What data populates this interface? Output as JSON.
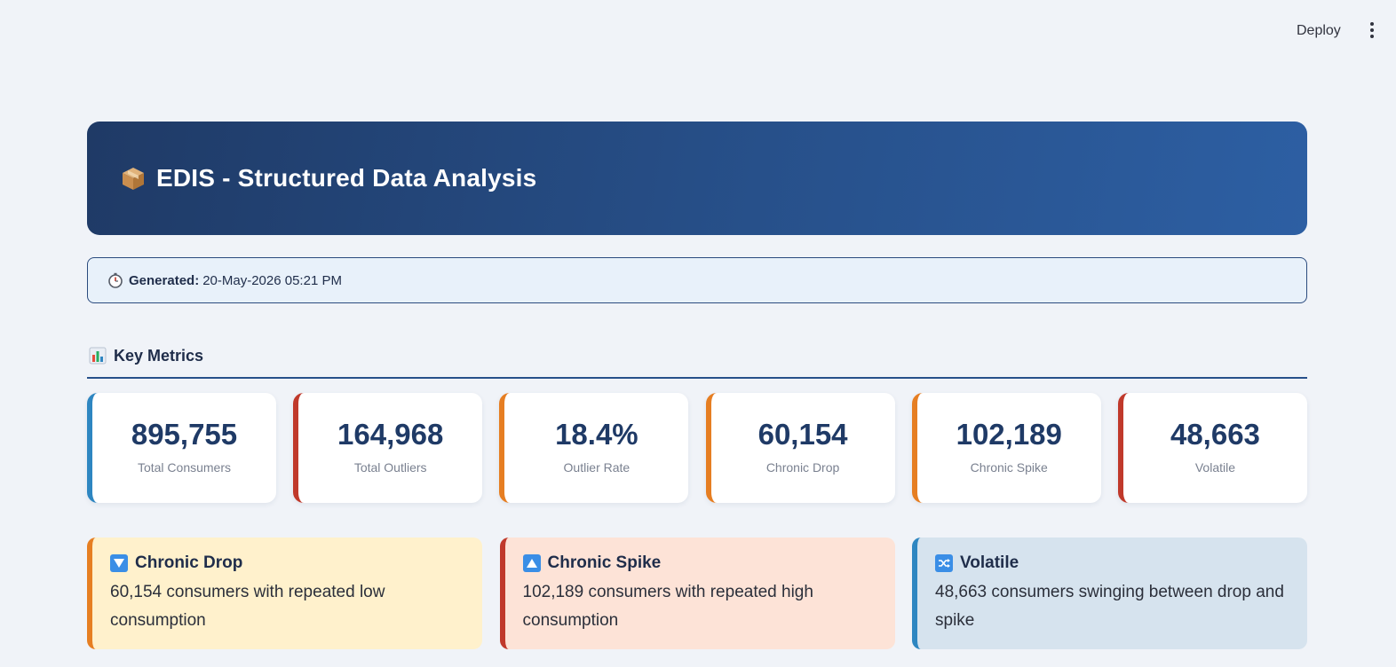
{
  "topbar": {
    "deploy_label": "Deploy",
    "menu_icon": "vertical-ellipsis-icon"
  },
  "hero": {
    "icon": "package-icon",
    "title": "EDIS - Structured Data Analysis"
  },
  "generated": {
    "icon": "stopwatch-icon",
    "label": "Generated:",
    "value": "20-May-2026 05:21 PM"
  },
  "key_metrics": {
    "icon": "bar-chart-icon",
    "title": "Key Metrics",
    "items": [
      {
        "value": "895,755",
        "label": "Total Consumers",
        "accent": "#2e86c1"
      },
      {
        "value": "164,968",
        "label": "Total Outliers",
        "accent": "#c0392b"
      },
      {
        "value": "18.4%",
        "label": "Outlier Rate",
        "accent": "#e67e22"
      },
      {
        "value": "60,154",
        "label": "Chronic Drop",
        "accent": "#e67e22"
      },
      {
        "value": "102,189",
        "label": "Chronic Spike",
        "accent": "#e67e22"
      },
      {
        "value": "48,663",
        "label": "Volatile",
        "accent": "#c0392b"
      }
    ]
  },
  "categories": [
    {
      "icon": "down-triangle-icon",
      "title": "Chronic Drop",
      "text": "60,154 consumers with repeated low consumption",
      "accent": "#e67e22",
      "bg": "#fff1cc"
    },
    {
      "icon": "up-triangle-icon",
      "title": "Chronic Spike",
      "text": "102,189 consumers with repeated high consumption",
      "accent": "#c0392b",
      "bg": "#fde3d7"
    },
    {
      "icon": "shuffle-icon",
      "title": "Volatile",
      "text": "48,663 consumers swinging between drop and spike",
      "accent": "#2e86c1",
      "bg": "#d6e3ee"
    }
  ]
}
